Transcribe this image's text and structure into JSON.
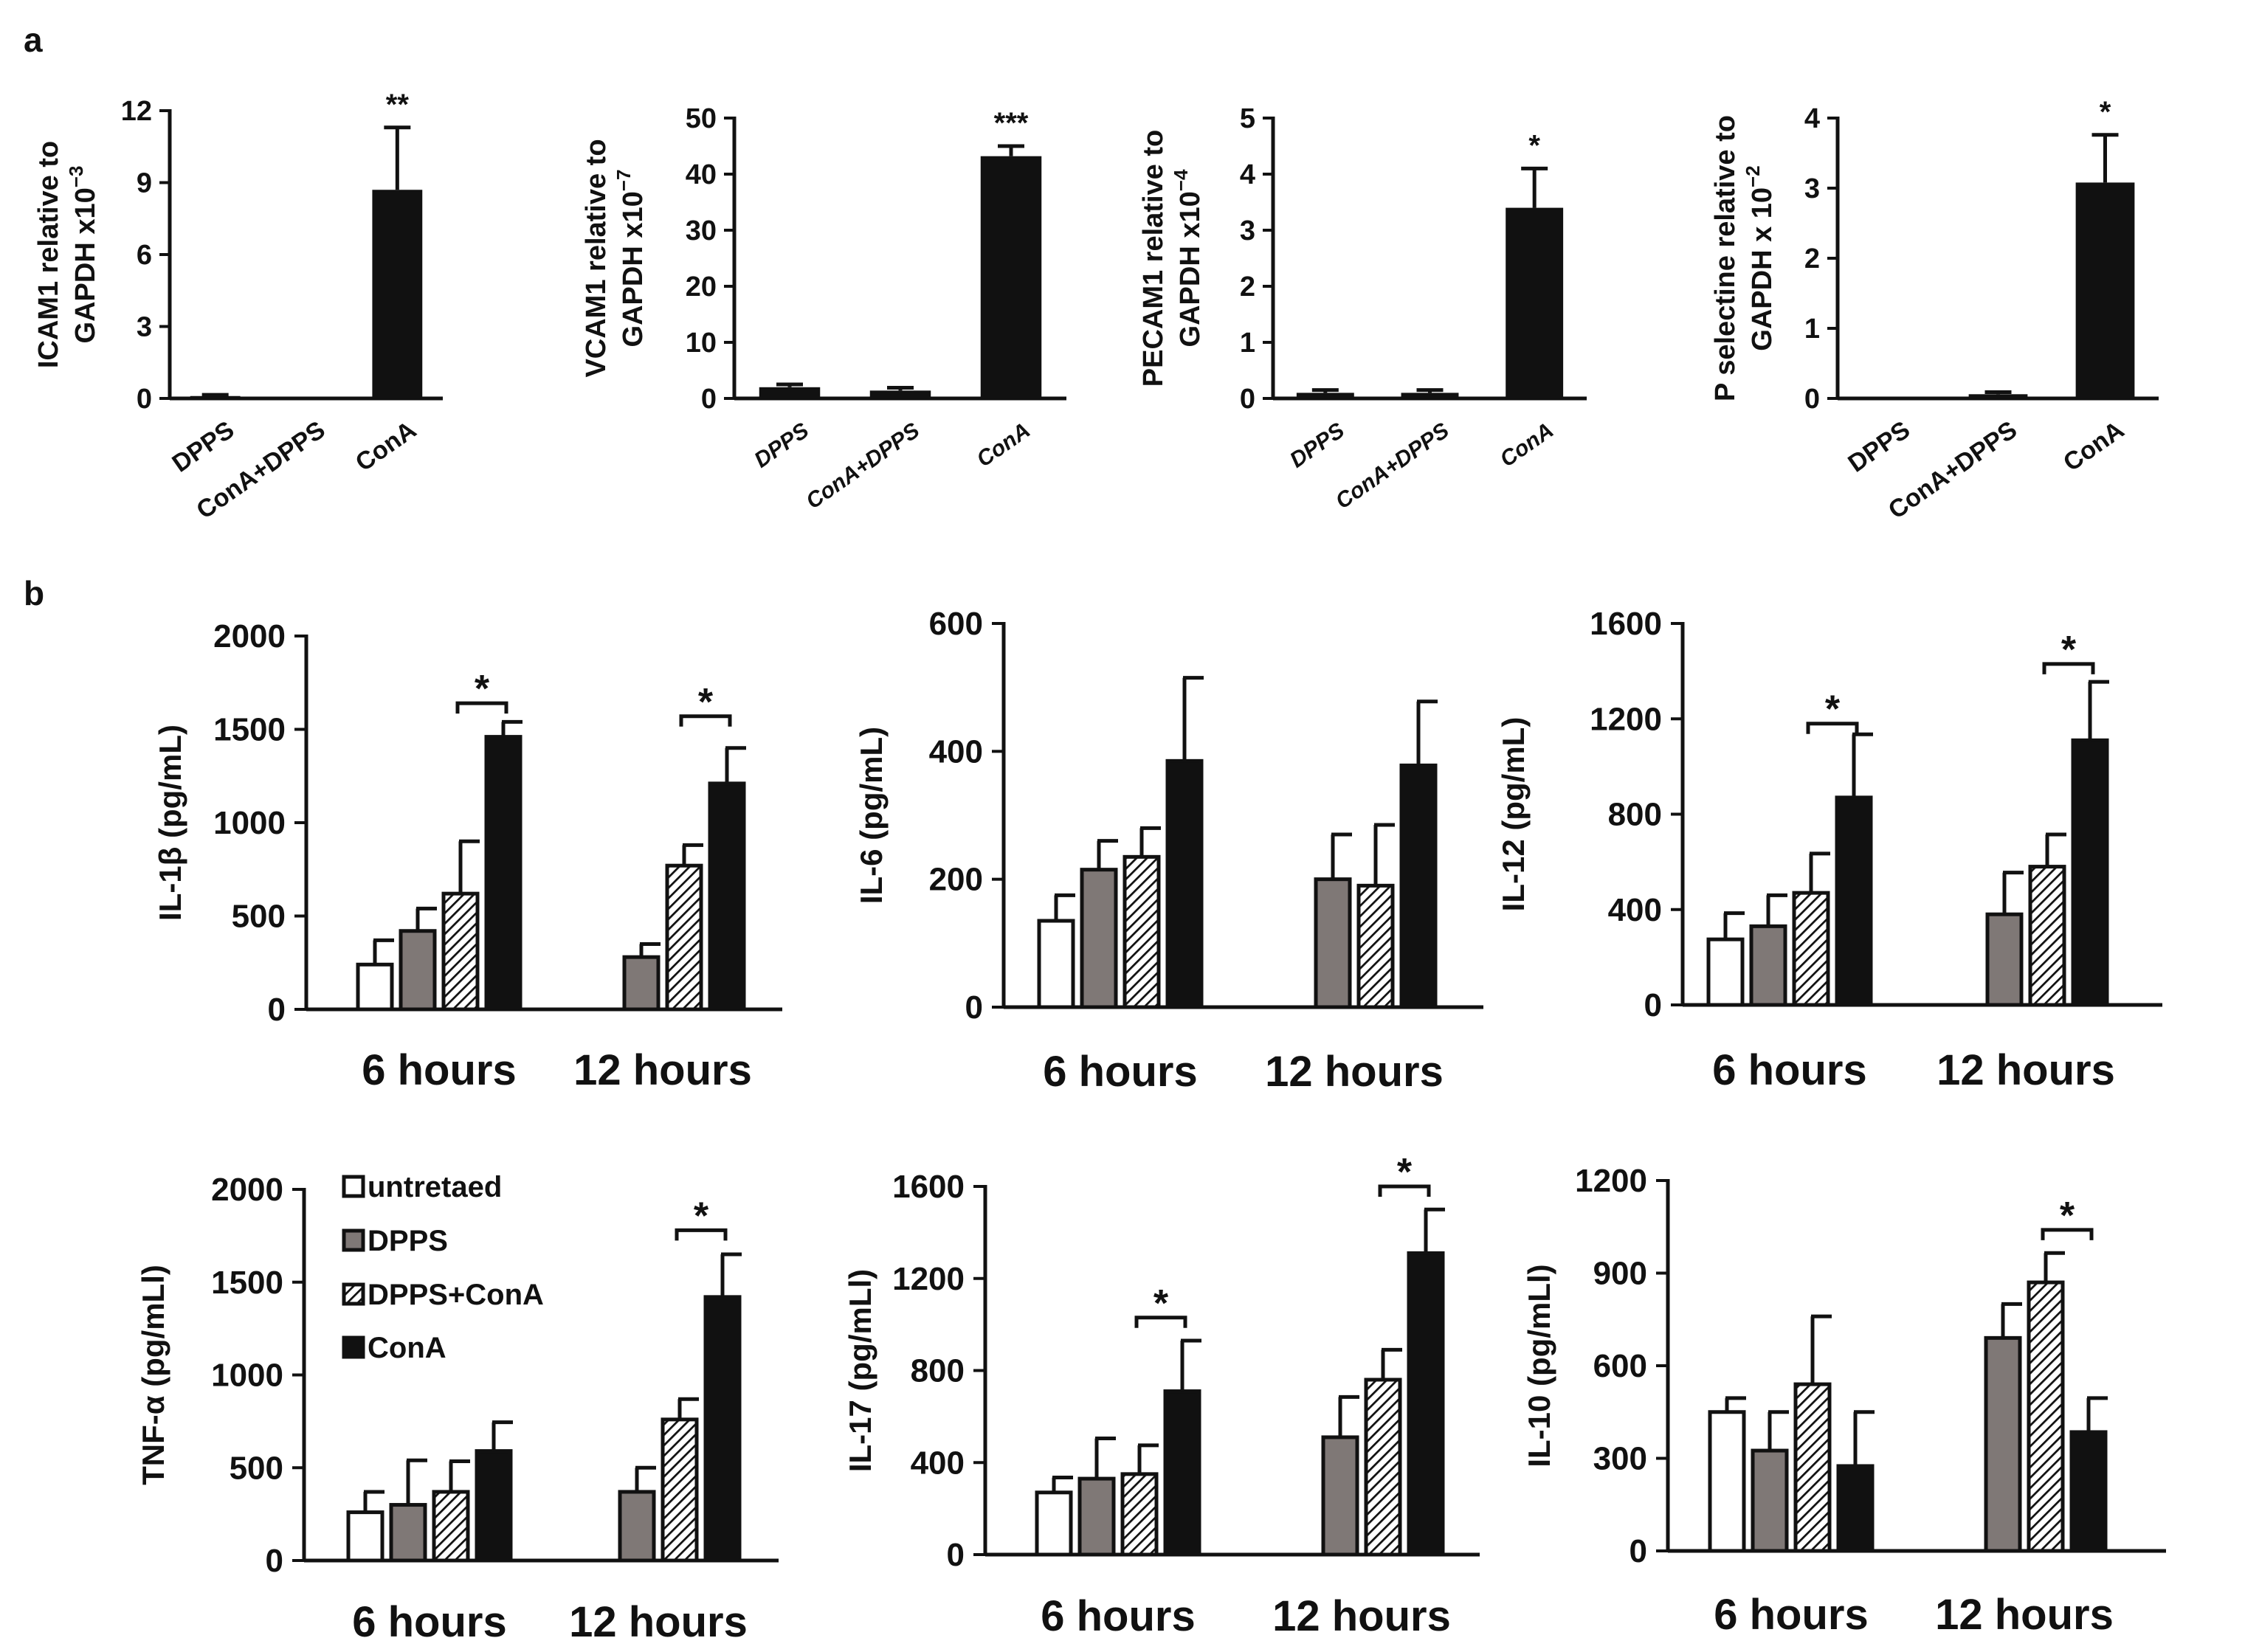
{
  "panel_labels": {
    "a": "a",
    "b": "b"
  },
  "legend": {
    "items": [
      {
        "key": "untreated",
        "label": "untretaed"
      },
      {
        "key": "dpps",
        "label": "DPPS"
      },
      {
        "key": "dpps_cona",
        "label": "DPPS+ConA"
      },
      {
        "key": "cona",
        "label": "ConA"
      }
    ]
  },
  "colors": {
    "untreated": "#ffffff",
    "dpps": "#7f7876",
    "dpps_cona": "#9a9a9a",
    "cona": "#111111",
    "axis": "#111111"
  },
  "chart_data": [
    {
      "id": "icam1",
      "type": "bar",
      "ylabel_line1": "ICAM1 relative to",
      "ylabel_line2": "GAPDH x10",
      "ylabel_exp": "−3",
      "categories": [
        "DPPS",
        "ConA+DPPS",
        "ConA"
      ],
      "values": [
        0.1,
        0,
        8.7
      ],
      "errors": [
        0.05,
        0,
        2.6
      ],
      "ylim": [
        0,
        12
      ],
      "yticks": [
        0,
        3,
        6,
        9,
        12
      ],
      "significance": [
        "",
        "",
        "**"
      ]
    },
    {
      "id": "vcam1",
      "type": "bar",
      "ylabel_line1": "VCAM1 relative to",
      "ylabel_line2": "GAPDH x10",
      "ylabel_exp": "−7",
      "categories": [
        "DPPS",
        "ConA+DPPS",
        "ConA"
      ],
      "values": [
        2.0,
        1.4,
        43.2
      ],
      "errors": [
        0.5,
        0.5,
        1.8
      ],
      "ylim": [
        0,
        50
      ],
      "yticks": [
        0,
        10,
        20,
        30,
        40,
        50
      ],
      "significance": [
        "",
        "",
        "***"
      ]
    },
    {
      "id": "pecam1",
      "type": "bar",
      "ylabel_line1": "PECAM1 relative to",
      "ylabel_line2": "GAPDH x10",
      "ylabel_exp": "−4",
      "categories": [
        "DPPS",
        "ConA+DPPS",
        "ConA"
      ],
      "values": [
        0.1,
        0.1,
        3.4
      ],
      "errors": [
        0.05,
        0.05,
        0.7
      ],
      "ylim": [
        0,
        5
      ],
      "yticks": [
        0,
        1,
        2,
        3,
        4,
        5
      ],
      "significance": [
        "",
        "",
        "*"
      ]
    },
    {
      "id": "pselectin",
      "type": "bar",
      "ylabel_line1": "P selectine relative to",
      "ylabel_line2": "GAPDH x 10",
      "ylabel_exp": "−2",
      "categories": [
        "DPPS",
        "ConA+DPPS",
        "ConA"
      ],
      "values": [
        0.0,
        0.06,
        3.08
      ],
      "errors": [
        0,
        0.03,
        0.68
      ],
      "ylim": [
        0,
        4
      ],
      "yticks": [
        0,
        1,
        2,
        3,
        4
      ],
      "significance": [
        "",
        "",
        "*"
      ]
    },
    {
      "id": "il1b",
      "type": "grouped-bar",
      "ylabel": "IL-1β (pg/mL)",
      "groups": [
        "6 hours",
        "12 hours"
      ],
      "series": [
        {
          "name": "untretaed",
          "values": [
            240,
            null
          ],
          "errors": [
            130,
            null
          ]
        },
        {
          "name": "DPPS",
          "values": [
            420,
            280
          ],
          "errors": [
            120,
            70
          ]
        },
        {
          "name": "DPPS+ConA",
          "values": [
            620,
            770
          ],
          "errors": [
            280,
            110
          ]
        },
        {
          "name": "ConA",
          "values": [
            1460,
            1210
          ],
          "errors": [
            80,
            190
          ]
        }
      ],
      "ylim": [
        0,
        2000
      ],
      "yticks": [
        0,
        500,
        1000,
        1500,
        2000
      ],
      "brackets": [
        {
          "group": 0,
          "from": 2,
          "to": 3,
          "at": 1640,
          "label": "*"
        },
        {
          "group": 1,
          "from": 2,
          "to": 3,
          "at": 1570,
          "label": "*"
        }
      ]
    },
    {
      "id": "il6",
      "type": "grouped-bar",
      "ylabel": "IL-6 (pg/mL)",
      "groups": [
        "6 hours",
        "12 hours"
      ],
      "series": [
        {
          "name": "untretaed",
          "values": [
            135,
            null
          ],
          "errors": [
            40,
            null
          ]
        },
        {
          "name": "DPPS",
          "values": [
            215,
            200
          ],
          "errors": [
            45,
            70
          ]
        },
        {
          "name": "DPPS+ConA",
          "values": [
            235,
            190
          ],
          "errors": [
            45,
            95
          ]
        },
        {
          "name": "ConA",
          "values": [
            385,
            378
          ],
          "errors": [
            130,
            100
          ]
        }
      ],
      "ylim": [
        0,
        600
      ],
      "yticks": [
        0,
        200,
        400,
        600
      ],
      "brackets": []
    },
    {
      "id": "il12",
      "type": "grouped-bar",
      "ylabel": "IL-12 (pg/mL)",
      "groups": [
        "6 hours",
        "12 hours"
      ],
      "series": [
        {
          "name": "untretaed",
          "values": [
            275,
            null
          ],
          "errors": [
            110,
            null
          ]
        },
        {
          "name": "DPPS",
          "values": [
            330,
            380
          ],
          "errors": [
            130,
            175
          ]
        },
        {
          "name": "DPPS+ConA",
          "values": [
            470,
            580
          ],
          "errors": [
            165,
            135
          ]
        },
        {
          "name": "ConA",
          "values": [
            870,
            1110
          ],
          "errors": [
            265,
            245
          ]
        }
      ],
      "ylim": [
        0,
        1600
      ],
      "yticks": [
        0,
        400,
        800,
        1200,
        1600
      ],
      "brackets": [
        {
          "group": 0,
          "from": 2,
          "to": 3,
          "at": 1180,
          "label": "*"
        },
        {
          "group": 1,
          "from": 2,
          "to": 3,
          "at": 1430,
          "label": "*"
        }
      ]
    },
    {
      "id": "tnfa",
      "type": "grouped-bar",
      "ylabel": "TNF-α (pg/mLl)",
      "groups": [
        "6 hours",
        "12 hours"
      ],
      "series": [
        {
          "name": "untretaed",
          "values": [
            260,
            null
          ],
          "errors": [
            110,
            null
          ]
        },
        {
          "name": "DPPS",
          "values": [
            300,
            370
          ],
          "errors": [
            240,
            130
          ]
        },
        {
          "name": "DPPS+ConA",
          "values": [
            370,
            760
          ],
          "errors": [
            165,
            110
          ]
        },
        {
          "name": "ConA",
          "values": [
            590,
            1420
          ],
          "errors": [
            155,
            230
          ]
        }
      ],
      "ylim": [
        0,
        2000
      ],
      "yticks": [
        0,
        500,
        1000,
        1500,
        2000
      ],
      "brackets": [
        {
          "group": 1,
          "from": 2,
          "to": 3,
          "at": 1780,
          "label": "*"
        }
      ]
    },
    {
      "id": "il17",
      "type": "grouped-bar",
      "ylabel": "IL-17 (pg/mLl)",
      "groups": [
        "6 hours",
        "12 hours"
      ],
      "series": [
        {
          "name": "untretaed",
          "values": [
            270,
            null
          ],
          "errors": [
            65,
            null
          ]
        },
        {
          "name": "DPPS",
          "values": [
            330,
            510
          ],
          "errors": [
            175,
            175
          ]
        },
        {
          "name": "DPPS+ConA",
          "values": [
            350,
            760
          ],
          "errors": [
            125,
            130
          ]
        },
        {
          "name": "ConA",
          "values": [
            710,
            1310
          ],
          "errors": [
            220,
            190
          ]
        }
      ],
      "ylim": [
        0,
        1600
      ],
      "yticks": [
        0,
        400,
        800,
        1200,
        1600
      ],
      "brackets": [
        {
          "group": 0,
          "from": 2,
          "to": 3,
          "at": 1030,
          "label": "*"
        },
        {
          "group": 1,
          "from": 2,
          "to": 3,
          "at": 1600,
          "label": "*"
        }
      ]
    },
    {
      "id": "il10",
      "type": "grouped-bar",
      "ylabel": "IL-10 (pg/mLl)",
      "groups": [
        "6 hours",
        "12 hours"
      ],
      "series": [
        {
          "name": "untretaed",
          "values": [
            450,
            null
          ],
          "errors": [
            45,
            null
          ]
        },
        {
          "name": "DPPS",
          "values": [
            325,
            690
          ],
          "errors": [
            125,
            110
          ]
        },
        {
          "name": "DPPS+ConA",
          "values": [
            540,
            870
          ],
          "errors": [
            220,
            95
          ]
        },
        {
          "name": "ConA",
          "values": [
            275,
            385
          ],
          "errors": [
            175,
            110
          ]
        }
      ],
      "ylim": [
        0,
        1200
      ],
      "yticks": [
        0,
        300,
        600,
        900,
        1200
      ],
      "brackets": [
        {
          "group": 1,
          "from": 2,
          "to": 3,
          "at": 1040,
          "label": "*"
        }
      ]
    }
  ]
}
